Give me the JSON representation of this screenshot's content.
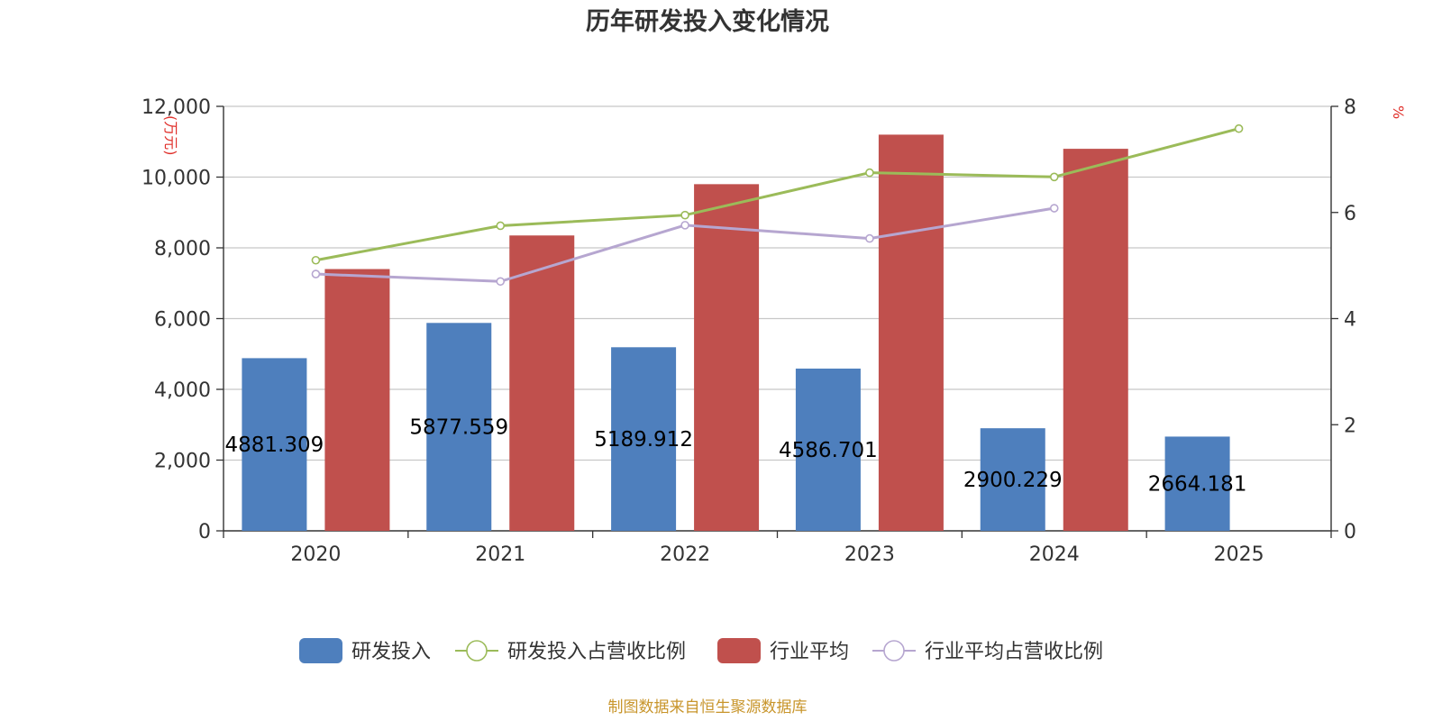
{
  "chart_data": {
    "type": "bar",
    "title": "历年研发投入变化情况",
    "categories": [
      "2020",
      "2021",
      "2022",
      "2023",
      "2024",
      "2025"
    ],
    "y_left": {
      "unit": "(万元)",
      "ylim": [
        0,
        12000
      ],
      "ticks": [
        "0",
        "2,000",
        "4,000",
        "6,000",
        "8,000",
        "10,000",
        "12,000"
      ]
    },
    "y_right": {
      "unit": "%",
      "ylim": [
        0,
        8
      ],
      "ticks": [
        "0",
        "2",
        "4",
        "6",
        "8"
      ]
    },
    "bar_series": [
      {
        "name": "研发投入",
        "color": "#4e7fbd",
        "values": [
          4881.309,
          5877.559,
          5189.912,
          4586.701,
          2900.229,
          2664.181
        ],
        "labels": [
          "4881.309",
          "5877.559",
          "5189.912",
          "4586.701",
          "2900.229",
          "2664.181"
        ]
      },
      {
        "name": "行业平均",
        "color": "#c0504d",
        "values": [
          7400,
          8350,
          9800,
          11200,
          10800,
          null
        ]
      }
    ],
    "line_series": [
      {
        "name": "研发投入占营收比例",
        "color": "#9bbb59",
        "axis": "right",
        "values": [
          5.1,
          5.75,
          5.95,
          6.75,
          6.67,
          7.58
        ]
      },
      {
        "name": "行业平均占营收比例",
        "color": "#b6a6d0",
        "axis": "right",
        "values": [
          4.84,
          4.7,
          5.76,
          5.51,
          6.08,
          null
        ]
      }
    ],
    "legend": [
      "研发投入",
      "研发投入占营收比例",
      "行业平均",
      "行业平均占营收比例"
    ],
    "legend_position": "bottom",
    "grid": true,
    "source": "制图数据来自恒生聚源数据库",
    "source_color": "#c8952b",
    "unit_color": "#e0302b"
  }
}
